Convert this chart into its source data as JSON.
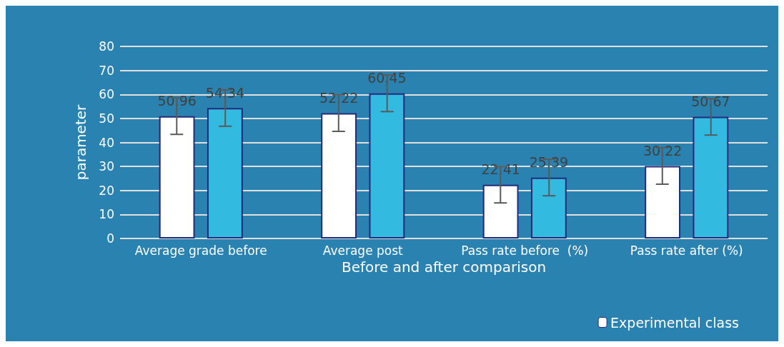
{
  "chart_data": {
    "type": "bar",
    "xlabel": "Before and after comparison",
    "ylabel": "parameter",
    "categories": [
      "Average grade before",
      "Average post",
      "Pass rate before  (%)",
      "Pass rate after (%)"
    ],
    "series": [
      {
        "name": "Experimental class",
        "color": "#ffffff",
        "values": [
          50.96,
          52.22,
          22.41,
          30.22
        ],
        "errors": [
          7.6,
          7.6,
          7.6,
          7.6
        ]
      },
      {
        "color": "#32bae0",
        "values": [
          54.34,
          60.45,
          25.39,
          50.67
        ],
        "errors": [
          7.6,
          7.6,
          7.6,
          7.6
        ]
      }
    ],
    "ylim": [
      0,
      80
    ],
    "yticks": [
      0,
      10,
      20,
      30,
      40,
      50,
      60,
      70,
      80
    ],
    "grid": "y",
    "legend": "bottom right",
    "data_labels": true
  }
}
